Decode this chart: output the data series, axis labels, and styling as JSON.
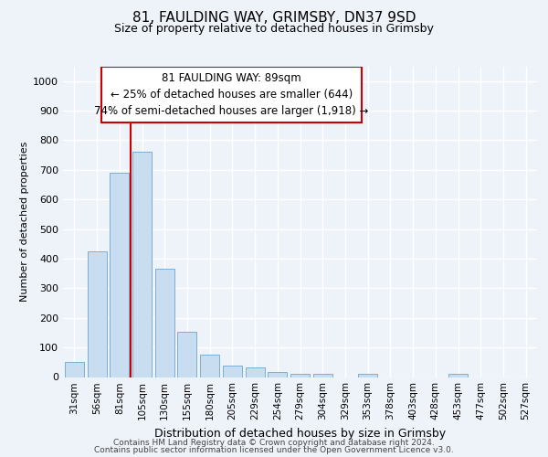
{
  "title1": "81, FAULDING WAY, GRIMSBY, DN37 9SD",
  "title2": "Size of property relative to detached houses in Grimsby",
  "xlabel": "Distribution of detached houses by size in Grimsby",
  "ylabel": "Number of detached properties",
  "categories": [
    "31sqm",
    "56sqm",
    "81sqm",
    "105sqm",
    "130sqm",
    "155sqm",
    "180sqm",
    "205sqm",
    "229sqm",
    "254sqm",
    "279sqm",
    "304sqm",
    "329sqm",
    "353sqm",
    "378sqm",
    "403sqm",
    "428sqm",
    "453sqm",
    "477sqm",
    "502sqm",
    "527sqm"
  ],
  "values": [
    52,
    425,
    690,
    760,
    365,
    152,
    75,
    40,
    32,
    18,
    12,
    10,
    0,
    10,
    0,
    0,
    0,
    10,
    0,
    0,
    0
  ],
  "bar_color": "#c9ddf0",
  "bar_edge_color": "#7aafd4",
  "vline_position": 2.5,
  "vline_color": "#cc0000",
  "annotation_line1": "81 FAULDING WAY: 89sqm",
  "annotation_line2": "← 25% of detached houses are smaller (644)",
  "annotation_line3": "74% of semi-detached houses are larger (1,918) →",
  "annotation_box_facecolor": "#ffffff",
  "annotation_box_edgecolor": "#cc0000",
  "ylim_max": 1050,
  "yticks": [
    0,
    100,
    200,
    300,
    400,
    500,
    600,
    700,
    800,
    900,
    1000
  ],
  "footer1": "Contains HM Land Registry data © Crown copyright and database right 2024.",
  "footer2": "Contains public sector information licensed under the Open Government Licence v3.0.",
  "bg_color": "#eef2f9",
  "title1_fontsize": 11,
  "title2_fontsize": 9,
  "ylabel_fontsize": 8,
  "xlabel_fontsize": 9,
  "tick_fontsize": 7.5,
  "ytick_fontsize": 8,
  "footer_fontsize": 6.5,
  "ann_fontsize": 8.5
}
